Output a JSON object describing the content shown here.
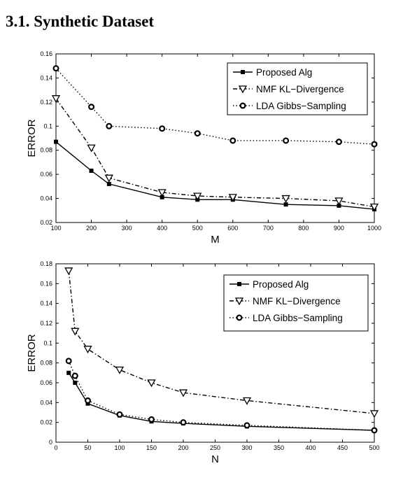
{
  "section_title": "3.1.  Synthetic Dataset",
  "chart_data": [
    {
      "type": "line",
      "xlabel": "M",
      "ylabel": "ERROR",
      "xlim": [
        100,
        1000
      ],
      "ylim": [
        0.02,
        0.16
      ],
      "xticks": [
        100,
        200,
        300,
        400,
        500,
        600,
        700,
        800,
        900,
        1000
      ],
      "yticks": [
        0.02,
        0.04,
        0.06,
        0.08,
        0.1,
        0.12,
        0.14,
        0.16
      ],
      "legend_position": "top-right",
      "grid": false,
      "series": [
        {
          "name": "Proposed Alg",
          "marker": "square",
          "dash": "solid",
          "x": [
            100,
            200,
            250,
            400,
            500,
            600,
            750,
            900,
            1000
          ],
          "y": [
            0.087,
            0.063,
            0.052,
            0.041,
            0.039,
            0.039,
            0.035,
            0.034,
            0.031
          ]
        },
        {
          "name": "NMF KL−Divergence",
          "marker": "triangle-down",
          "dash": "dashdot",
          "x": [
            100,
            200,
            250,
            400,
            500,
            600,
            750,
            900,
            1000
          ],
          "y": [
            0.123,
            0.082,
            0.057,
            0.045,
            0.042,
            0.041,
            0.04,
            0.038,
            0.033
          ]
        },
        {
          "name": "LDA Gibbs−Sampling",
          "marker": "circle",
          "dash": "dotted",
          "x": [
            100,
            200,
            250,
            400,
            500,
            600,
            750,
            900,
            1000
          ],
          "y": [
            0.148,
            0.116,
            0.1,
            0.098,
            0.094,
            0.088,
            0.088,
            0.087,
            0.085
          ]
        }
      ]
    },
    {
      "type": "line",
      "xlabel": "N",
      "ylabel": "ERROR",
      "xlim": [
        0,
        500
      ],
      "ylim": [
        0,
        0.18
      ],
      "xticks": [
        0,
        50,
        100,
        150,
        200,
        250,
        300,
        350,
        400,
        450,
        500
      ],
      "yticks": [
        0,
        0.02,
        0.04,
        0.06,
        0.08,
        0.1,
        0.12,
        0.14,
        0.16,
        0.18
      ],
      "legend_position": "top-right",
      "grid": false,
      "series": [
        {
          "name": "Proposed Alg",
          "marker": "square",
          "dash": "solid",
          "x": [
            20,
            30,
            50,
            100,
            150,
            200,
            300,
            500
          ],
          "y": [
            0.07,
            0.06,
            0.039,
            0.027,
            0.021,
            0.019,
            0.016,
            0.012
          ]
        },
        {
          "name": "NMF KL−Divergence",
          "marker": "triangle-down",
          "dash": "dashdot",
          "x": [
            20,
            30,
            50,
            100,
            150,
            200,
            300,
            500
          ],
          "y": [
            0.173,
            0.112,
            0.094,
            0.073,
            0.06,
            0.05,
            0.042,
            0.029
          ]
        },
        {
          "name": "LDA Gibbs−Sampling",
          "marker": "circle",
          "dash": "dotted",
          "x": [
            20,
            30,
            50,
            100,
            150,
            200,
            300,
            500
          ],
          "y": [
            0.082,
            0.067,
            0.042,
            0.028,
            0.023,
            0.02,
            0.017,
            0.012
          ]
        }
      ]
    }
  ]
}
